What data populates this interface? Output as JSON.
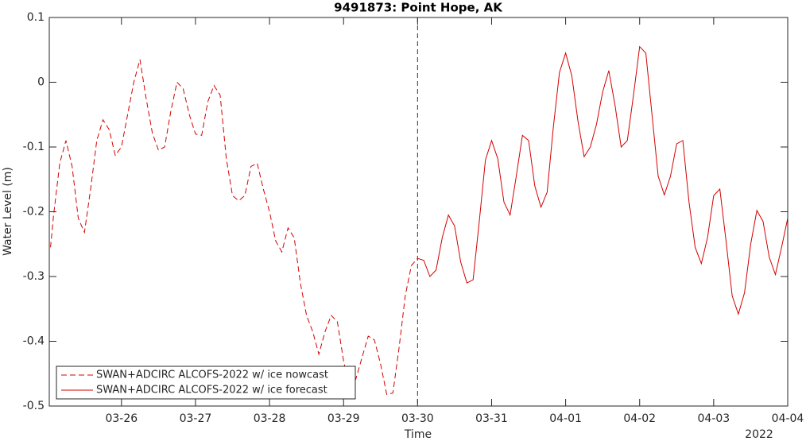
{
  "chart_data": {
    "type": "line",
    "title": "9491873: Point Hope, AK",
    "xlabel": "Time",
    "xlabel_secondary": "2022",
    "ylabel": "Water Level (m)",
    "xlim": [
      "2022-03-25T00:36",
      "2022-04-04T00:00"
    ],
    "xticks": [
      {
        "value": "2022-03-26T00:00",
        "label": "03-26"
      },
      {
        "value": "2022-03-27T00:00",
        "label": "03-27"
      },
      {
        "value": "2022-03-28T00:00",
        "label": "03-28"
      },
      {
        "value": "2022-03-29T00:00",
        "label": "03-29"
      },
      {
        "value": "2022-03-30T00:00",
        "label": "03-30"
      },
      {
        "value": "2022-03-31T00:00",
        "label": "03-31"
      },
      {
        "value": "2022-04-01T00:00",
        "label": "04-01"
      },
      {
        "value": "2022-04-02T00:00",
        "label": "04-02"
      },
      {
        "value": "2022-04-03T00:00",
        "label": "04-03"
      },
      {
        "value": "2022-04-04T00:00",
        "label": "04-04"
      }
    ],
    "ylim": [
      -0.5,
      0.1
    ],
    "yticks": [
      -0.5,
      -0.4,
      -0.3,
      -0.2,
      -0.1,
      0,
      0.1
    ],
    "grid": false,
    "legend": "lower left",
    "vlines": [
      "2022-03-30T00:00"
    ],
    "series": [
      {
        "name": "SWAN+ADCIRC ALCOFS-2022 w/ ice nowcast",
        "color": "#d40000",
        "dash": "dashed",
        "x": [
          "2022-03-25T01:00",
          "2022-03-25T02:00",
          "2022-03-25T04:00",
          "2022-03-25T06:00",
          "2022-03-25T08:00",
          "2022-03-25T10:00",
          "2022-03-25T12:00",
          "2022-03-25T14:00",
          "2022-03-25T16:00",
          "2022-03-25T18:00",
          "2022-03-25T20:00",
          "2022-03-25T22:00",
          "2022-03-26T00:00",
          "2022-03-26T02:00",
          "2022-03-26T04:00",
          "2022-03-26T06:00",
          "2022-03-26T08:00",
          "2022-03-26T10:00",
          "2022-03-26T12:00",
          "2022-03-26T14:00",
          "2022-03-26T16:00",
          "2022-03-26T18:00",
          "2022-03-26T20:00",
          "2022-03-26T22:00",
          "2022-03-27T00:00",
          "2022-03-27T02:00",
          "2022-03-27T04:00",
          "2022-03-27T06:00",
          "2022-03-27T08:00",
          "2022-03-27T10:00",
          "2022-03-27T12:00",
          "2022-03-27T14:00",
          "2022-03-27T16:00",
          "2022-03-27T18:00",
          "2022-03-27T20:00",
          "2022-03-27T22:00",
          "2022-03-28T00:00",
          "2022-03-28T02:00",
          "2022-03-28T04:00",
          "2022-03-28T06:00",
          "2022-03-28T08:00",
          "2022-03-28T10:00",
          "2022-03-28T12:00",
          "2022-03-28T14:00",
          "2022-03-28T16:00",
          "2022-03-28T18:00",
          "2022-03-28T20:00",
          "2022-03-28T22:00",
          "2022-03-29T00:00",
          "2022-03-29T02:00",
          "2022-03-29T04:00",
          "2022-03-29T06:00",
          "2022-03-29T08:00",
          "2022-03-29T10:00",
          "2022-03-29T12:00",
          "2022-03-29T14:00",
          "2022-03-29T16:00",
          "2022-03-29T18:00",
          "2022-03-29T20:00",
          "2022-03-29T22:00",
          "2022-03-30T00:00"
        ],
        "values": [
          -0.255,
          -0.205,
          -0.125,
          -0.09,
          -0.13,
          -0.21,
          -0.232,
          -0.165,
          -0.09,
          -0.058,
          -0.073,
          -0.113,
          -0.1,
          -0.05,
          0,
          0.035,
          -0.025,
          -0.078,
          -0.105,
          -0.1,
          -0.045,
          0,
          -0.01,
          -0.05,
          -0.08,
          -0.082,
          -0.03,
          -0.005,
          -0.02,
          -0.118,
          -0.175,
          -0.183,
          -0.175,
          -0.13,
          -0.125,
          -0.165,
          -0.2,
          -0.245,
          -0.262,
          -0.225,
          -0.24,
          -0.31,
          -0.36,
          -0.385,
          -0.42,
          -0.385,
          -0.36,
          -0.37,
          -0.43,
          -0.474,
          -0.458,
          -0.425,
          -0.392,
          -0.398,
          -0.435,
          -0.482,
          -0.48,
          -0.41,
          -0.33,
          -0.283,
          -0.272
        ]
      },
      {
        "name": "SWAN+ADCIRC ALCOFS-2022 w/ ice forecast",
        "color": "#d40000",
        "dash": "solid",
        "x": [
          "2022-03-30T00:00",
          "2022-03-30T02:00",
          "2022-03-30T04:00",
          "2022-03-30T06:00",
          "2022-03-30T08:00",
          "2022-03-30T10:00",
          "2022-03-30T12:00",
          "2022-03-30T14:00",
          "2022-03-30T16:00",
          "2022-03-30T18:00",
          "2022-03-30T20:00",
          "2022-03-30T22:00",
          "2022-03-31T00:00",
          "2022-03-31T02:00",
          "2022-03-31T04:00",
          "2022-03-31T06:00",
          "2022-03-31T08:00",
          "2022-03-31T10:00",
          "2022-03-31T12:00",
          "2022-03-31T14:00",
          "2022-03-31T16:00",
          "2022-03-31T18:00",
          "2022-03-31T20:00",
          "2022-03-31T22:00",
          "2022-04-01T00:00",
          "2022-04-01T02:00",
          "2022-04-01T04:00",
          "2022-04-01T06:00",
          "2022-04-01T08:00",
          "2022-04-01T10:00",
          "2022-04-01T12:00",
          "2022-04-01T14:00",
          "2022-04-01T16:00",
          "2022-04-01T18:00",
          "2022-04-01T20:00",
          "2022-04-01T22:00",
          "2022-04-02T00:00",
          "2022-04-02T02:00",
          "2022-04-02T04:00",
          "2022-04-02T06:00",
          "2022-04-02T08:00",
          "2022-04-02T10:00",
          "2022-04-02T12:00",
          "2022-04-02T14:00",
          "2022-04-02T16:00",
          "2022-04-02T18:00",
          "2022-04-02T20:00",
          "2022-04-02T22:00",
          "2022-04-03T00:00",
          "2022-04-03T02:00",
          "2022-04-03T04:00",
          "2022-04-03T06:00",
          "2022-04-03T08:00",
          "2022-04-03T10:00",
          "2022-04-03T12:00",
          "2022-04-03T14:00",
          "2022-04-03T16:00",
          "2022-04-03T18:00",
          "2022-04-03T20:00",
          "2022-04-03T22:00",
          "2022-04-04T00:00"
        ],
        "values": [
          -0.272,
          -0.275,
          -0.3,
          -0.29,
          -0.24,
          -0.205,
          -0.222,
          -0.278,
          -0.31,
          -0.305,
          -0.215,
          -0.12,
          -0.09,
          -0.118,
          -0.185,
          -0.205,
          -0.145,
          -0.082,
          -0.09,
          -0.16,
          -0.193,
          -0.17,
          -0.07,
          0.015,
          0.045,
          0.01,
          -0.06,
          -0.115,
          -0.1,
          -0.065,
          -0.015,
          0.018,
          -0.035,
          -0.1,
          -0.09,
          -0.02,
          0.055,
          0.045,
          -0.05,
          -0.145,
          -0.174,
          -0.145,
          -0.095,
          -0.09,
          -0.185,
          -0.255,
          -0.28,
          -0.24,
          -0.175,
          -0.165,
          -0.245,
          -0.33,
          -0.358,
          -0.325,
          -0.25,
          -0.198,
          -0.215,
          -0.27,
          -0.297,
          -0.255,
          -0.21
        ]
      }
    ]
  }
}
